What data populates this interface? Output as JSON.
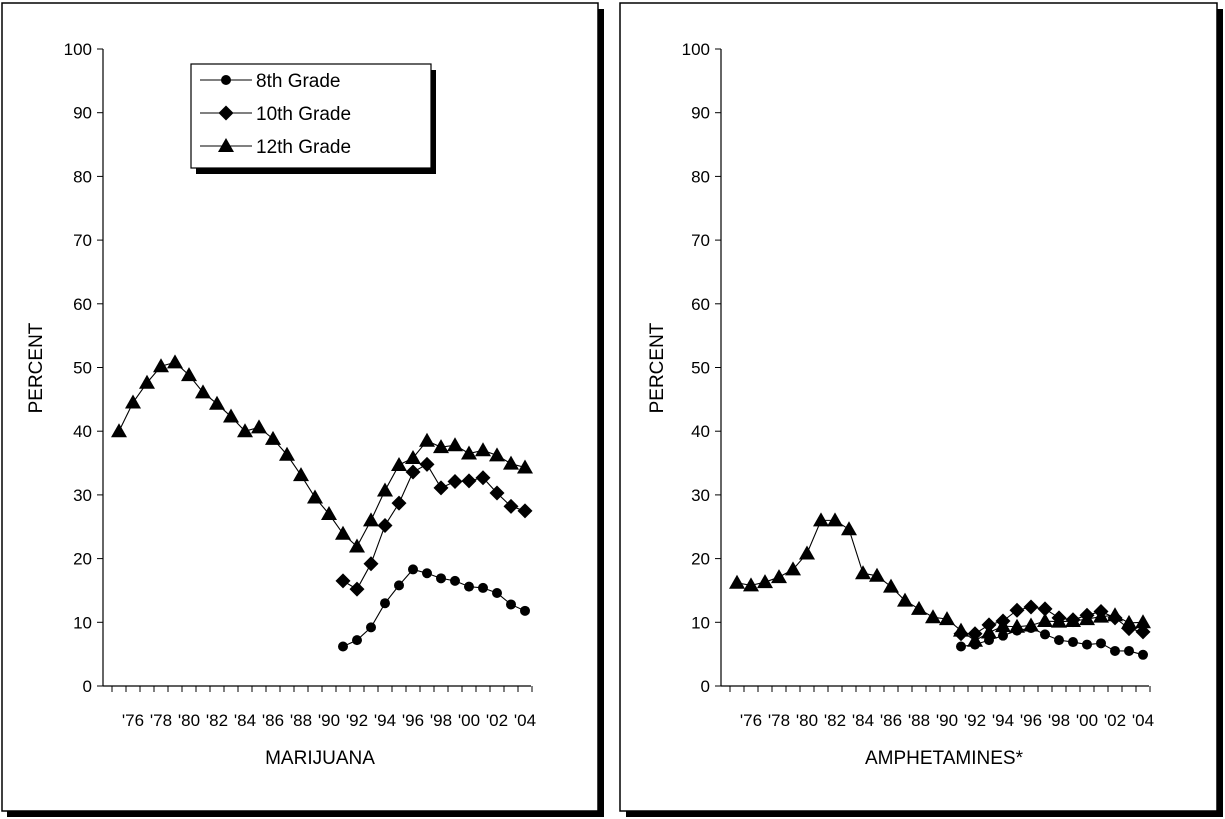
{
  "chart_data": [
    {
      "type": "line",
      "title": "",
      "xlabel": "MARIJUANA",
      "ylabel": "PERCENT",
      "ylim": [
        0,
        100
      ],
      "yticks": [
        0,
        10,
        20,
        30,
        40,
        50,
        60,
        70,
        80,
        90,
        100
      ],
      "xlim": [
        1975,
        2004
      ],
      "x_tick_labels": [
        {
          "x": 1976,
          "label": "'76"
        },
        {
          "x": 1978,
          "label": "'78"
        },
        {
          "x": 1980,
          "label": "'80"
        },
        {
          "x": 1982,
          "label": "'82"
        },
        {
          "x": 1984,
          "label": "'84"
        },
        {
          "x": 1986,
          "label": "'86"
        },
        {
          "x": 1988,
          "label": "'88"
        },
        {
          "x": 1990,
          "label": "'90"
        },
        {
          "x": 1992,
          "label": "'92"
        },
        {
          "x": 1994,
          "label": "'94"
        },
        {
          "x": 1996,
          "label": "'96"
        },
        {
          "x": 1998,
          "label": "'98"
        },
        {
          "x": 2000,
          "label": "'00"
        },
        {
          "x": 2002,
          "label": "'02"
        },
        {
          "x": 2004,
          "label": "'04"
        }
      ],
      "legend": "top-left",
      "series": [
        {
          "name": "8th Grade",
          "marker": "circle",
          "x": [
            1991,
            1992,
            1993,
            1994,
            1995,
            1996,
            1997,
            1998,
            1999,
            2000,
            2001,
            2002,
            2003,
            2004
          ],
          "values": [
            6.2,
            7.2,
            9.2,
            13.0,
            15.8,
            18.3,
            17.7,
            16.9,
            16.5,
            15.6,
            15.4,
            14.6,
            12.8,
            11.8
          ]
        },
        {
          "name": "10th Grade",
          "marker": "diamond",
          "x": [
            1991,
            1992,
            1993,
            1994,
            1995,
            1996,
            1997,
            1998,
            1999,
            2000,
            2001,
            2002,
            2003,
            2004
          ],
          "values": [
            16.5,
            15.2,
            19.2,
            25.2,
            28.7,
            33.6,
            34.8,
            31.1,
            32.1,
            32.2,
            32.7,
            30.3,
            28.2,
            27.5
          ]
        },
        {
          "name": "12th Grade",
          "marker": "triangle",
          "x": [
            1975,
            1976,
            1977,
            1978,
            1979,
            1980,
            1981,
            1982,
            1983,
            1984,
            1985,
            1986,
            1987,
            1988,
            1989,
            1990,
            1991,
            1992,
            1993,
            1994,
            1995,
            1996,
            1997,
            1998,
            1999,
            2000,
            2001,
            2002,
            2003,
            2004
          ],
          "values": [
            40.0,
            44.5,
            47.6,
            50.2,
            50.8,
            48.8,
            46.1,
            44.3,
            42.3,
            40.0,
            40.6,
            38.8,
            36.3,
            33.1,
            29.6,
            27.0,
            23.9,
            21.9,
            26.0,
            30.7,
            34.7,
            35.8,
            38.5,
            37.5,
            37.8,
            36.5,
            37.0,
            36.2,
            34.9,
            34.3
          ]
        }
      ]
    },
    {
      "type": "line",
      "title": "",
      "xlabel": "AMPHETAMINES*",
      "ylabel": "PERCENT",
      "ylim": [
        0,
        100
      ],
      "yticks": [
        0,
        10,
        20,
        30,
        40,
        50,
        60,
        70,
        80,
        90,
        100
      ],
      "xlim": [
        1975,
        2004
      ],
      "x_tick_labels": [
        {
          "x": 1976,
          "label": "'76"
        },
        {
          "x": 1978,
          "label": "'78"
        },
        {
          "x": 1980,
          "label": "'80"
        },
        {
          "x": 1982,
          "label": "'82"
        },
        {
          "x": 1984,
          "label": "'84"
        },
        {
          "x": 1986,
          "label": "'86"
        },
        {
          "x": 1988,
          "label": "'88"
        },
        {
          "x": 1990,
          "label": "'90"
        },
        {
          "x": 1992,
          "label": "'92"
        },
        {
          "x": 1994,
          "label": "'94"
        },
        {
          "x": 1996,
          "label": "'96"
        },
        {
          "x": 1998,
          "label": "'98"
        },
        {
          "x": 2000,
          "label": "'00"
        },
        {
          "x": 2002,
          "label": "'02"
        },
        {
          "x": 2004,
          "label": "'04"
        }
      ],
      "series": [
        {
          "name": "8th Grade",
          "marker": "circle",
          "x": [
            1991,
            1992,
            1993,
            1994,
            1995,
            1996,
            1997,
            1998,
            1999,
            2000,
            2001,
            2002,
            2003,
            2004
          ],
          "values": [
            6.2,
            6.5,
            7.2,
            7.9,
            8.7,
            9.1,
            8.1,
            7.2,
            6.9,
            6.5,
            6.7,
            5.5,
            5.5,
            4.9
          ]
        },
        {
          "name": "10th Grade",
          "marker": "diamond",
          "x": [
            1991,
            1992,
            1993,
            1994,
            1995,
            1996,
            1997,
            1998,
            1999,
            2000,
            2001,
            2002,
            2003,
            2004
          ],
          "values": [
            8.2,
            8.2,
            9.6,
            10.2,
            11.9,
            12.4,
            12.1,
            10.7,
            10.4,
            11.1,
            11.7,
            10.7,
            9.0,
            8.5
          ]
        },
        {
          "name": "12th Grade",
          "marker": "triangle",
          "x": [
            1975,
            1976,
            1977,
            1978,
            1979,
            1980,
            1981,
            1982,
            1983,
            1984,
            1985,
            1986,
            1987,
            1988,
            1989,
            1990,
            1991,
            1992,
            1993,
            1994,
            1995,
            1996,
            1997,
            1998,
            1999,
            2000,
            2001,
            2002,
            2003,
            2004
          ],
          "values": [
            16.2,
            15.8,
            16.3,
            17.1,
            18.3,
            20.8,
            26.0,
            26.0,
            24.6,
            17.7,
            17.3,
            15.6,
            13.4,
            12.1,
            10.8,
            10.5,
            8.7,
            7.1,
            8.4,
            9.4,
            9.3,
            9.5,
            10.2,
            10.1,
            10.2,
            10.5,
            10.9,
            11.1,
            9.9,
            10.0
          ]
        }
      ]
    }
  ]
}
